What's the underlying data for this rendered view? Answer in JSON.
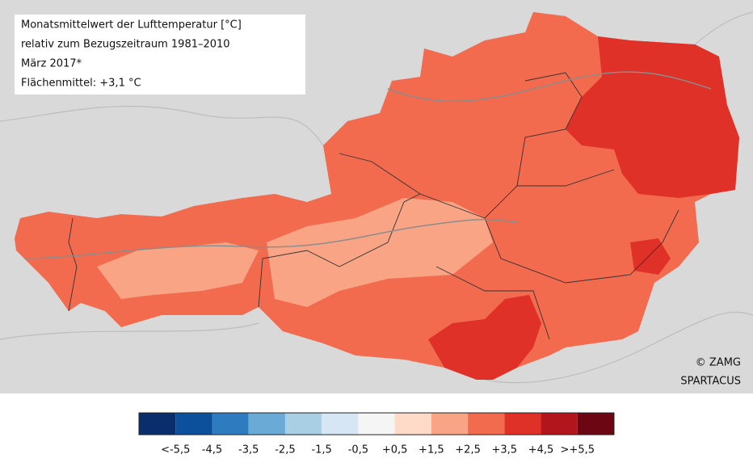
{
  "info_box": {
    "lines": [
      "Monatsmittelwert der Lufttemperatur [°C]",
      "relativ zum Bezugszeitraum 1981–2010",
      "März 2017*",
      "Flächenmittel: +3,1 °C"
    ]
  },
  "credit": {
    "lines": [
      "© ZAMG",
      "SPARTACUS"
    ]
  },
  "legend": {
    "colors": [
      "#0a2d6b",
      "#0c4f9a",
      "#2f7bbf",
      "#6aaad6",
      "#a9cfe5",
      "#d6e6f4",
      "#f5f5f5",
      "#fddbc8",
      "#f9a585",
      "#f36b4e",
      "#e03128",
      "#b3151d",
      "#6b0612"
    ],
    "labels": [
      "<-5,5",
      "-4,5",
      "-3,5",
      "-2,5",
      "-1,5",
      "-0,5",
      "+0,5",
      "+1,5",
      "+2,5",
      "+3,5",
      "+4,5",
      ">+5,5"
    ]
  }
}
